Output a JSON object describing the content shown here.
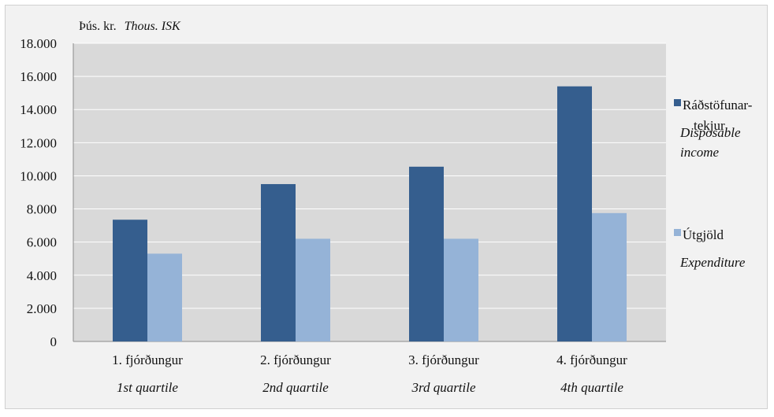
{
  "chart_data": {
    "type": "bar",
    "unit_label_is": "Þús. kr.",
    "unit_label_en": "Thous. ISK",
    "categories": [
      {
        "is": "1. fjórðungur",
        "en": "1st quartile"
      },
      {
        "is": "2. fjórðungur",
        "en": "2nd quartile"
      },
      {
        "is": "3. fjórðungur",
        "en": "3rd quartile"
      },
      {
        "is": "4. fjórðungur",
        "en": "4th quartile"
      }
    ],
    "series": [
      {
        "name_is_lines": [
          "Ráðstöfunar-",
          "tekjur"
        ],
        "name_en_lines": [
          "Disposable",
          "income"
        ],
        "color": "#355e8e",
        "values": [
          7350,
          9500,
          10550,
          15400
        ]
      },
      {
        "name_is_lines": [
          "Útgjöld"
        ],
        "name_en_lines": [
          "Expenditure"
        ],
        "color": "#95b3d7",
        "values": [
          5300,
          6200,
          6200,
          7750
        ]
      }
    ],
    "yticks": [
      "0",
      "2.000",
      "4.000",
      "6.000",
      "8.000",
      "10.000",
      "12.000",
      "14.000",
      "16.000",
      "18.000"
    ],
    "ylim": [
      0,
      18000
    ],
    "grid": true,
    "legend_position": "right",
    "plot_background": "#d9d9d9",
    "gridline_color": "#ffffff"
  }
}
